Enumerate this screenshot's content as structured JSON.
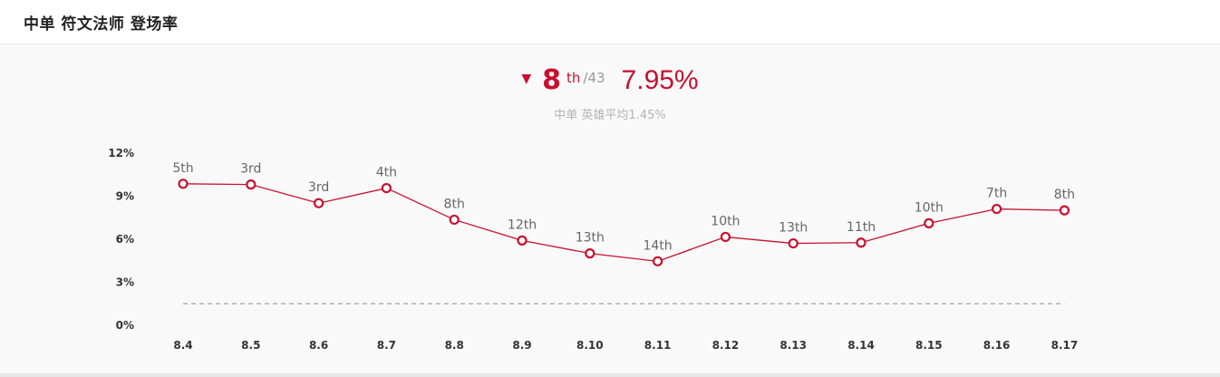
{
  "header": {
    "title": "中单 符文法师 登场率"
  },
  "summary": {
    "trend_icon": "triangle-down-icon",
    "rank": "8",
    "rank_suffix": "th",
    "rank_total": "/43",
    "rate": "7.95%",
    "average_label": "中单 英雄平均1.45%"
  },
  "colors": {
    "accent": "#c8102e",
    "muted": "#999999",
    "average_line": "#999999"
  },
  "chart_data": {
    "type": "line",
    "title": "",
    "xlabel": "",
    "ylabel": "",
    "ylim": [
      0,
      12
    ],
    "y_ticks": [
      "0%",
      "3%",
      "6%",
      "9%",
      "12%"
    ],
    "categories": [
      "8.4",
      "8.5",
      "8.6",
      "8.7",
      "8.8",
      "8.9",
      "8.10",
      "8.11",
      "8.12",
      "8.13",
      "8.14",
      "8.15",
      "8.16",
      "8.17"
    ],
    "series": [
      {
        "values": [
          9.8,
          9.75,
          8.45,
          9.5,
          7.3,
          5.85,
          4.95,
          4.4,
          6.1,
          5.65,
          5.7,
          7.05,
          8.05,
          7.95
        ],
        "point_labels": [
          "5th",
          "3rd",
          "3rd",
          "4th",
          "8th",
          "12th",
          "13th",
          "14th",
          "10th",
          "13th",
          "11th",
          "10th",
          "7th",
          "8th"
        ]
      }
    ],
    "reference_line": {
      "value": 1.45,
      "style": "dashed"
    },
    "grid": false,
    "legend": "none"
  }
}
